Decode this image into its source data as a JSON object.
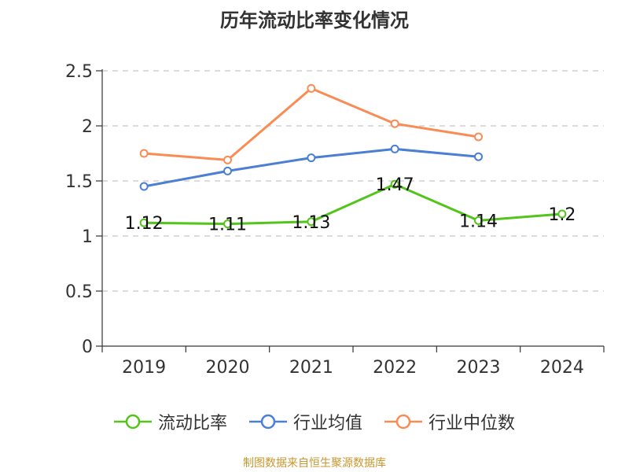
{
  "title": "历年流动比率变化情况",
  "source": "制图数据来自恒生聚源数据库",
  "chart_data": {
    "type": "line",
    "categories": [
      "2019",
      "2020",
      "2021",
      "2022",
      "2023",
      "2024"
    ],
    "ylim": [
      0,
      2.5
    ],
    "yticks": [
      "0",
      "0.5",
      "1",
      "1.5",
      "2",
      "2.5"
    ],
    "grid": true,
    "legend_position": "bottom",
    "series": [
      {
        "name": "流动比率",
        "color": "#52c41a",
        "values": [
          1.12,
          1.11,
          1.13,
          1.47,
          1.14,
          1.2
        ],
        "labels": [
          "1.12",
          "1.11",
          "1.13",
          "1.47",
          "1.14",
          "1.2"
        ]
      },
      {
        "name": "行业均值",
        "color": "#4a7fd4",
        "values": [
          1.45,
          1.59,
          1.71,
          1.79,
          1.72,
          null
        ]
      },
      {
        "name": "行业中位数",
        "color": "#f98c55",
        "values": [
          1.75,
          1.69,
          2.34,
          2.02,
          1.9,
          null
        ]
      }
    ]
  }
}
